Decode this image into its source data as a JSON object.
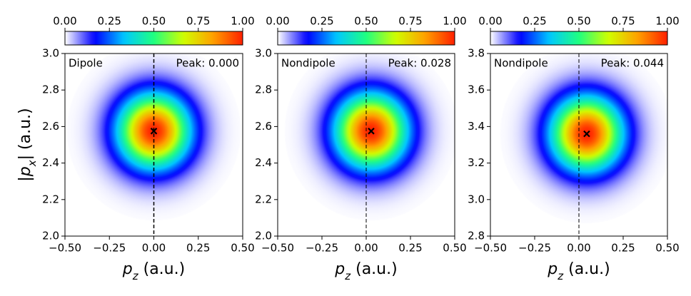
{
  "chart_data": [
    {
      "type": "heatmap",
      "label": "Dipole",
      "annotation": "Peak: 0.000",
      "peak": {
        "x": 0.0,
        "y": 2.575
      },
      "sigma": 0.14,
      "reference_x": 0,
      "xlim": [
        -0.5,
        0.5
      ],
      "xticks": [
        {
          "value": -0.5,
          "label": "−0.50"
        },
        {
          "value": -0.25,
          "label": "−0.25"
        },
        {
          "value": 0,
          "label": "0.00"
        },
        0.25,
        {
          "value": 0.5,
          "label": "0.50"
        }
      ],
      "ylim": [
        2.0,
        3.0
      ],
      "yticks": [
        {
          "value": 2.0,
          "label": "2.0"
        },
        2.2,
        2.4,
        2.6,
        2.8,
        {
          "value": 3.0,
          "label": "3.0"
        }
      ],
      "xlabel": [
        "p",
        "z",
        " (a.u.)"
      ],
      "ylabel": [
        "|p",
        "x",
        "| (a.u.)"
      ],
      "cbar_lim": [
        0,
        1
      ],
      "cbar_ticks": [
        {
          "value": 0,
          "label": "0.00"
        },
        0.25,
        {
          "value": 0.5,
          "label": "0.50"
        },
        0.75,
        {
          "value": 1,
          "label": "1.00"
        }
      ],
      "colormap": [
        "#ffffff",
        "#0000ff",
        "#00c8ff",
        "#20ff80",
        "#d0ff00",
        "#ffa000",
        "#ff2000"
      ]
    },
    {
      "type": "heatmap",
      "label": "Nondipole",
      "annotation": "Peak: 0.028",
      "peak": {
        "x": 0.028,
        "y": 2.575
      },
      "sigma": 0.14,
      "reference_x": 0,
      "xlim": [
        -0.5,
        0.5
      ],
      "xticks": [
        {
          "value": -0.5,
          "label": "−0.50"
        },
        {
          "value": -0.25,
          "label": "−0.25"
        },
        {
          "value": 0,
          "label": "0.00"
        },
        0.25,
        {
          "value": 0.5,
          "label": "0.50"
        }
      ],
      "ylim": [
        2.0,
        3.0
      ],
      "yticks": [
        {
          "value": 2.0,
          "label": "2.0"
        },
        2.2,
        2.4,
        2.6,
        2.8,
        {
          "value": 3.0,
          "label": "3.0"
        }
      ],
      "xlabel": [
        "p",
        "z",
        " (a.u.)"
      ],
      "cbar_lim": [
        0,
        1
      ],
      "cbar_ticks": [
        {
          "value": 0,
          "label": "0.00"
        },
        0.25,
        {
          "value": 0.5,
          "label": "0.50"
        },
        0.75,
        {
          "value": 1,
          "label": "1.00"
        }
      ],
      "colormap": [
        "#ffffff",
        "#0000ff",
        "#00c8ff",
        "#20ff80",
        "#d0ff00",
        "#ffa000",
        "#ff2000"
      ]
    },
    {
      "type": "heatmap",
      "label": "Nondipole",
      "annotation": "Peak: 0.044",
      "peak": {
        "x": 0.044,
        "y": 3.36
      },
      "sigma": 0.14,
      "reference_x": 0,
      "xlim": [
        -0.5,
        0.5
      ],
      "xticks": [
        {
          "value": -0.5,
          "label": "−0.50"
        },
        {
          "value": -0.25,
          "label": "−0.25"
        },
        {
          "value": 0,
          "label": "0.00"
        },
        0.25,
        {
          "value": 0.5,
          "label": "0.50"
        }
      ],
      "ylim": [
        2.8,
        3.8
      ],
      "yticks": [
        2.8,
        {
          "value": 3.0,
          "label": "3.0"
        },
        3.2,
        3.4,
        3.6,
        3.8
      ],
      "xlabel": [
        "p",
        "z",
        " (a.u.)"
      ],
      "cbar_lim": [
        0,
        1
      ],
      "cbar_ticks": [
        {
          "value": 0,
          "label": "0.00"
        },
        0.25,
        {
          "value": 0.5,
          "label": "0.50"
        },
        0.75,
        {
          "value": 1,
          "label": "1.00"
        }
      ],
      "colormap": [
        "#ffffff",
        "#0000ff",
        "#00c8ff",
        "#20ff80",
        "#d0ff00",
        "#ffa000",
        "#ff2000"
      ]
    }
  ]
}
